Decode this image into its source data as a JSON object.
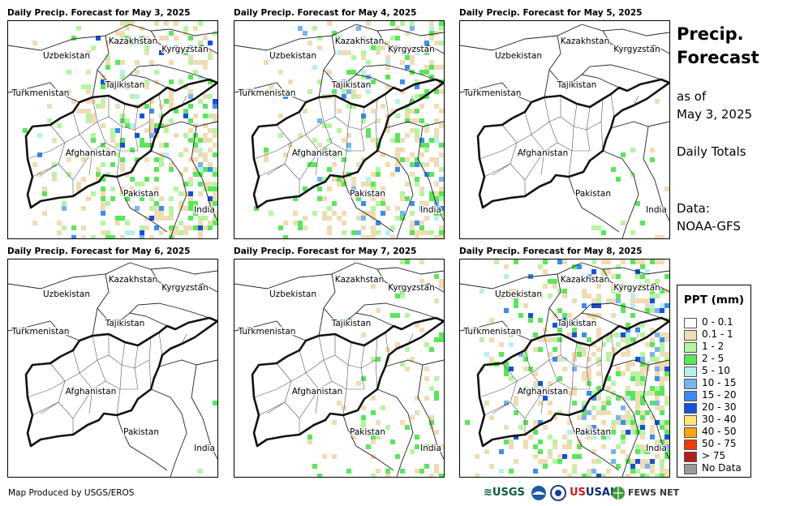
{
  "panels": [
    {
      "title": "Daily Precip. Forecast for May 3, 2025",
      "density": 0.55,
      "seed": 11
    },
    {
      "title": "Daily Precip. Forecast for May 4, 2025",
      "density": 0.5,
      "seed": 23
    },
    {
      "title": "Daily Precip. Forecast for May 5, 2025",
      "density": 0.18,
      "seed": 37
    },
    {
      "title": "Daily Precip. Forecast for May 6, 2025",
      "density": 0.14,
      "seed": 41
    },
    {
      "title": "Daily Precip. Forecast for May 7, 2025",
      "density": 0.3,
      "seed": 53
    },
    {
      "title": "Daily Precip. Forecast for May 8, 2025",
      "density": 0.6,
      "seed": 67
    }
  ],
  "labels": {
    "kazakhstan": "Kazakhstan",
    "kyrgyzstan": "Kyrgyzstan",
    "uzbekistan": "Uzbekistan",
    "tajikistan": "Tajikistan",
    "turkmenistan": "Turkmenistan",
    "afghanistan": "Afghanistan",
    "pakistan": "Pakistan",
    "india": "India"
  },
  "side": {
    "title_line1": "Precip.",
    "title_line2": "Forecast",
    "as_of_line1": "as of",
    "as_of_line2": "May 3, 2025",
    "totals": "Daily Totals",
    "data_label": "Data:",
    "data_source": "NOAA-GFS"
  },
  "legend": {
    "title": "PPT (mm)",
    "items": [
      {
        "label": "0 - 0.1",
        "color": "#ffffff"
      },
      {
        "label": "0.1 - 1",
        "color": "#f0dcb4"
      },
      {
        "label": "1 - 2",
        "color": "#b4f5a0"
      },
      {
        "label": "2 - 5",
        "color": "#5ae65a"
      },
      {
        "label": "5 - 10",
        "color": "#b4f0f0"
      },
      {
        "label": "10 - 15",
        "color": "#78b4f0"
      },
      {
        "label": "15 - 20",
        "color": "#3c8cf0"
      },
      {
        "label": "20 - 30",
        "color": "#1450dc"
      },
      {
        "label": "30 - 40",
        "color": "#ffe678"
      },
      {
        "label": "40 - 50",
        "color": "#ffa500"
      },
      {
        "label": "50 - 75",
        "color": "#f03c00"
      },
      {
        "label": "> 75",
        "color": "#b41e1e"
      },
      {
        "label": "No Data",
        "color": "#999999"
      }
    ]
  },
  "footer": {
    "credit": "Map Produced by USGS/EROS",
    "logo_usgs": "USGS",
    "logo_usaid": "USAID",
    "logo_fews": "FEWS NET"
  }
}
